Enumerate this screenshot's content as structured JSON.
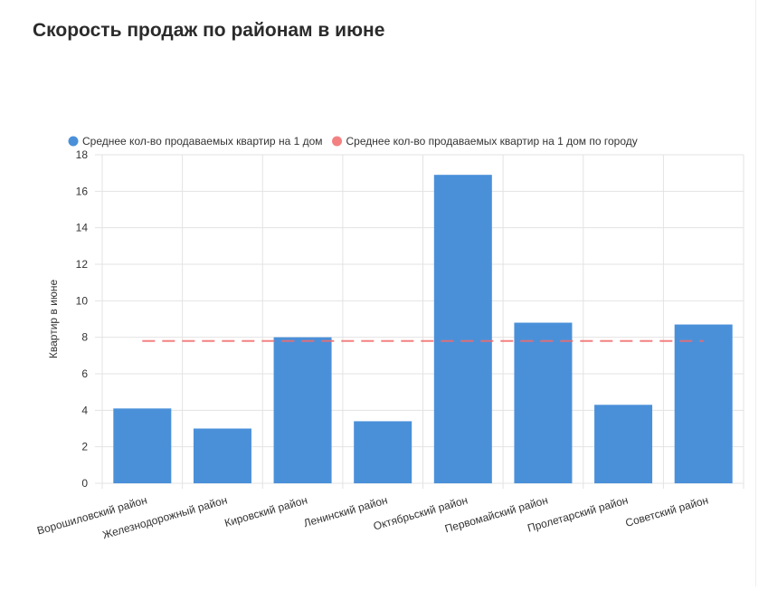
{
  "chart_data": {
    "type": "bar",
    "title": "Скорость продаж по районам в июне",
    "ylabel": "Квартир в июне",
    "categories": [
      "Ворошиловский район",
      "Железнодорожный район",
      "Кировский район",
      "Ленинский район",
      "Октябрьский район",
      "Первомайский район",
      "Пролетарский район",
      "Советский район"
    ],
    "series": [
      {
        "name": "Среднее кол-во продаваемых квартир на 1 дом",
        "type": "bar",
        "color": "#4a90d9",
        "values": [
          4.1,
          3.0,
          8.0,
          3.4,
          16.9,
          8.8,
          4.3,
          8.7
        ]
      },
      {
        "name": "Среднее кол-во продаваемых квартир на 1 дом по городу",
        "type": "line",
        "dashed": true,
        "color": "#f26b6b",
        "values": [
          7.8,
          7.8,
          7.8,
          7.8,
          7.8,
          7.8,
          7.8,
          7.8
        ]
      }
    ],
    "ylim": [
      0,
      18
    ],
    "yticks": [
      0,
      2,
      4,
      6,
      8,
      10,
      12,
      14,
      16,
      18
    ],
    "grid": true,
    "legend": "top"
  }
}
